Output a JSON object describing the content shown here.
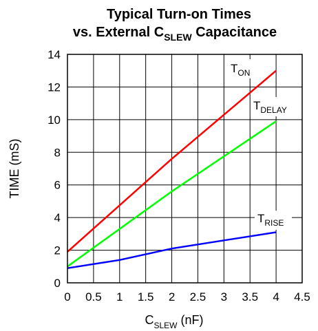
{
  "chart_data": {
    "type": "line",
    "title_line1": "Typical Turn-on Times",
    "title_line2_main": "vs. External C",
    "title_line2_sub": "SLEW",
    "title_line2_end": "Capacitance",
    "ylabel": "TIME (mS)",
    "xlabel_main": "C",
    "xlabel_sub": "SLEW",
    "xlabel_end": "(nF)",
    "xlim": [
      0,
      4.5
    ],
    "ylim": [
      0,
      14
    ],
    "x_ticks": [
      "0",
      "0.5",
      "1",
      "1.5",
      "2",
      "2.5",
      "3",
      "3.5",
      "4",
      "4.5"
    ],
    "y_ticks": [
      "0",
      "2",
      "4",
      "6",
      "8",
      "10",
      "12",
      "14"
    ],
    "grid": true,
    "series": [
      {
        "name_main": "T",
        "name_sub": "ON",
        "color": "#ff0000",
        "x": [
          0,
          2,
          4
        ],
        "y": [
          1.9,
          7.6,
          13.0
        ]
      },
      {
        "name_main": "T",
        "name_sub": "DELAY",
        "color": "#00ff00",
        "x": [
          0,
          2,
          4
        ],
        "y": [
          1.0,
          5.6,
          9.9
        ]
      },
      {
        "name_main": "T",
        "name_sub": "RISE",
        "color": "#0000ff",
        "x": [
          0,
          1,
          2,
          3,
          4
        ],
        "y": [
          0.9,
          1.4,
          2.1,
          2.6,
          3.1
        ]
      }
    ]
  }
}
